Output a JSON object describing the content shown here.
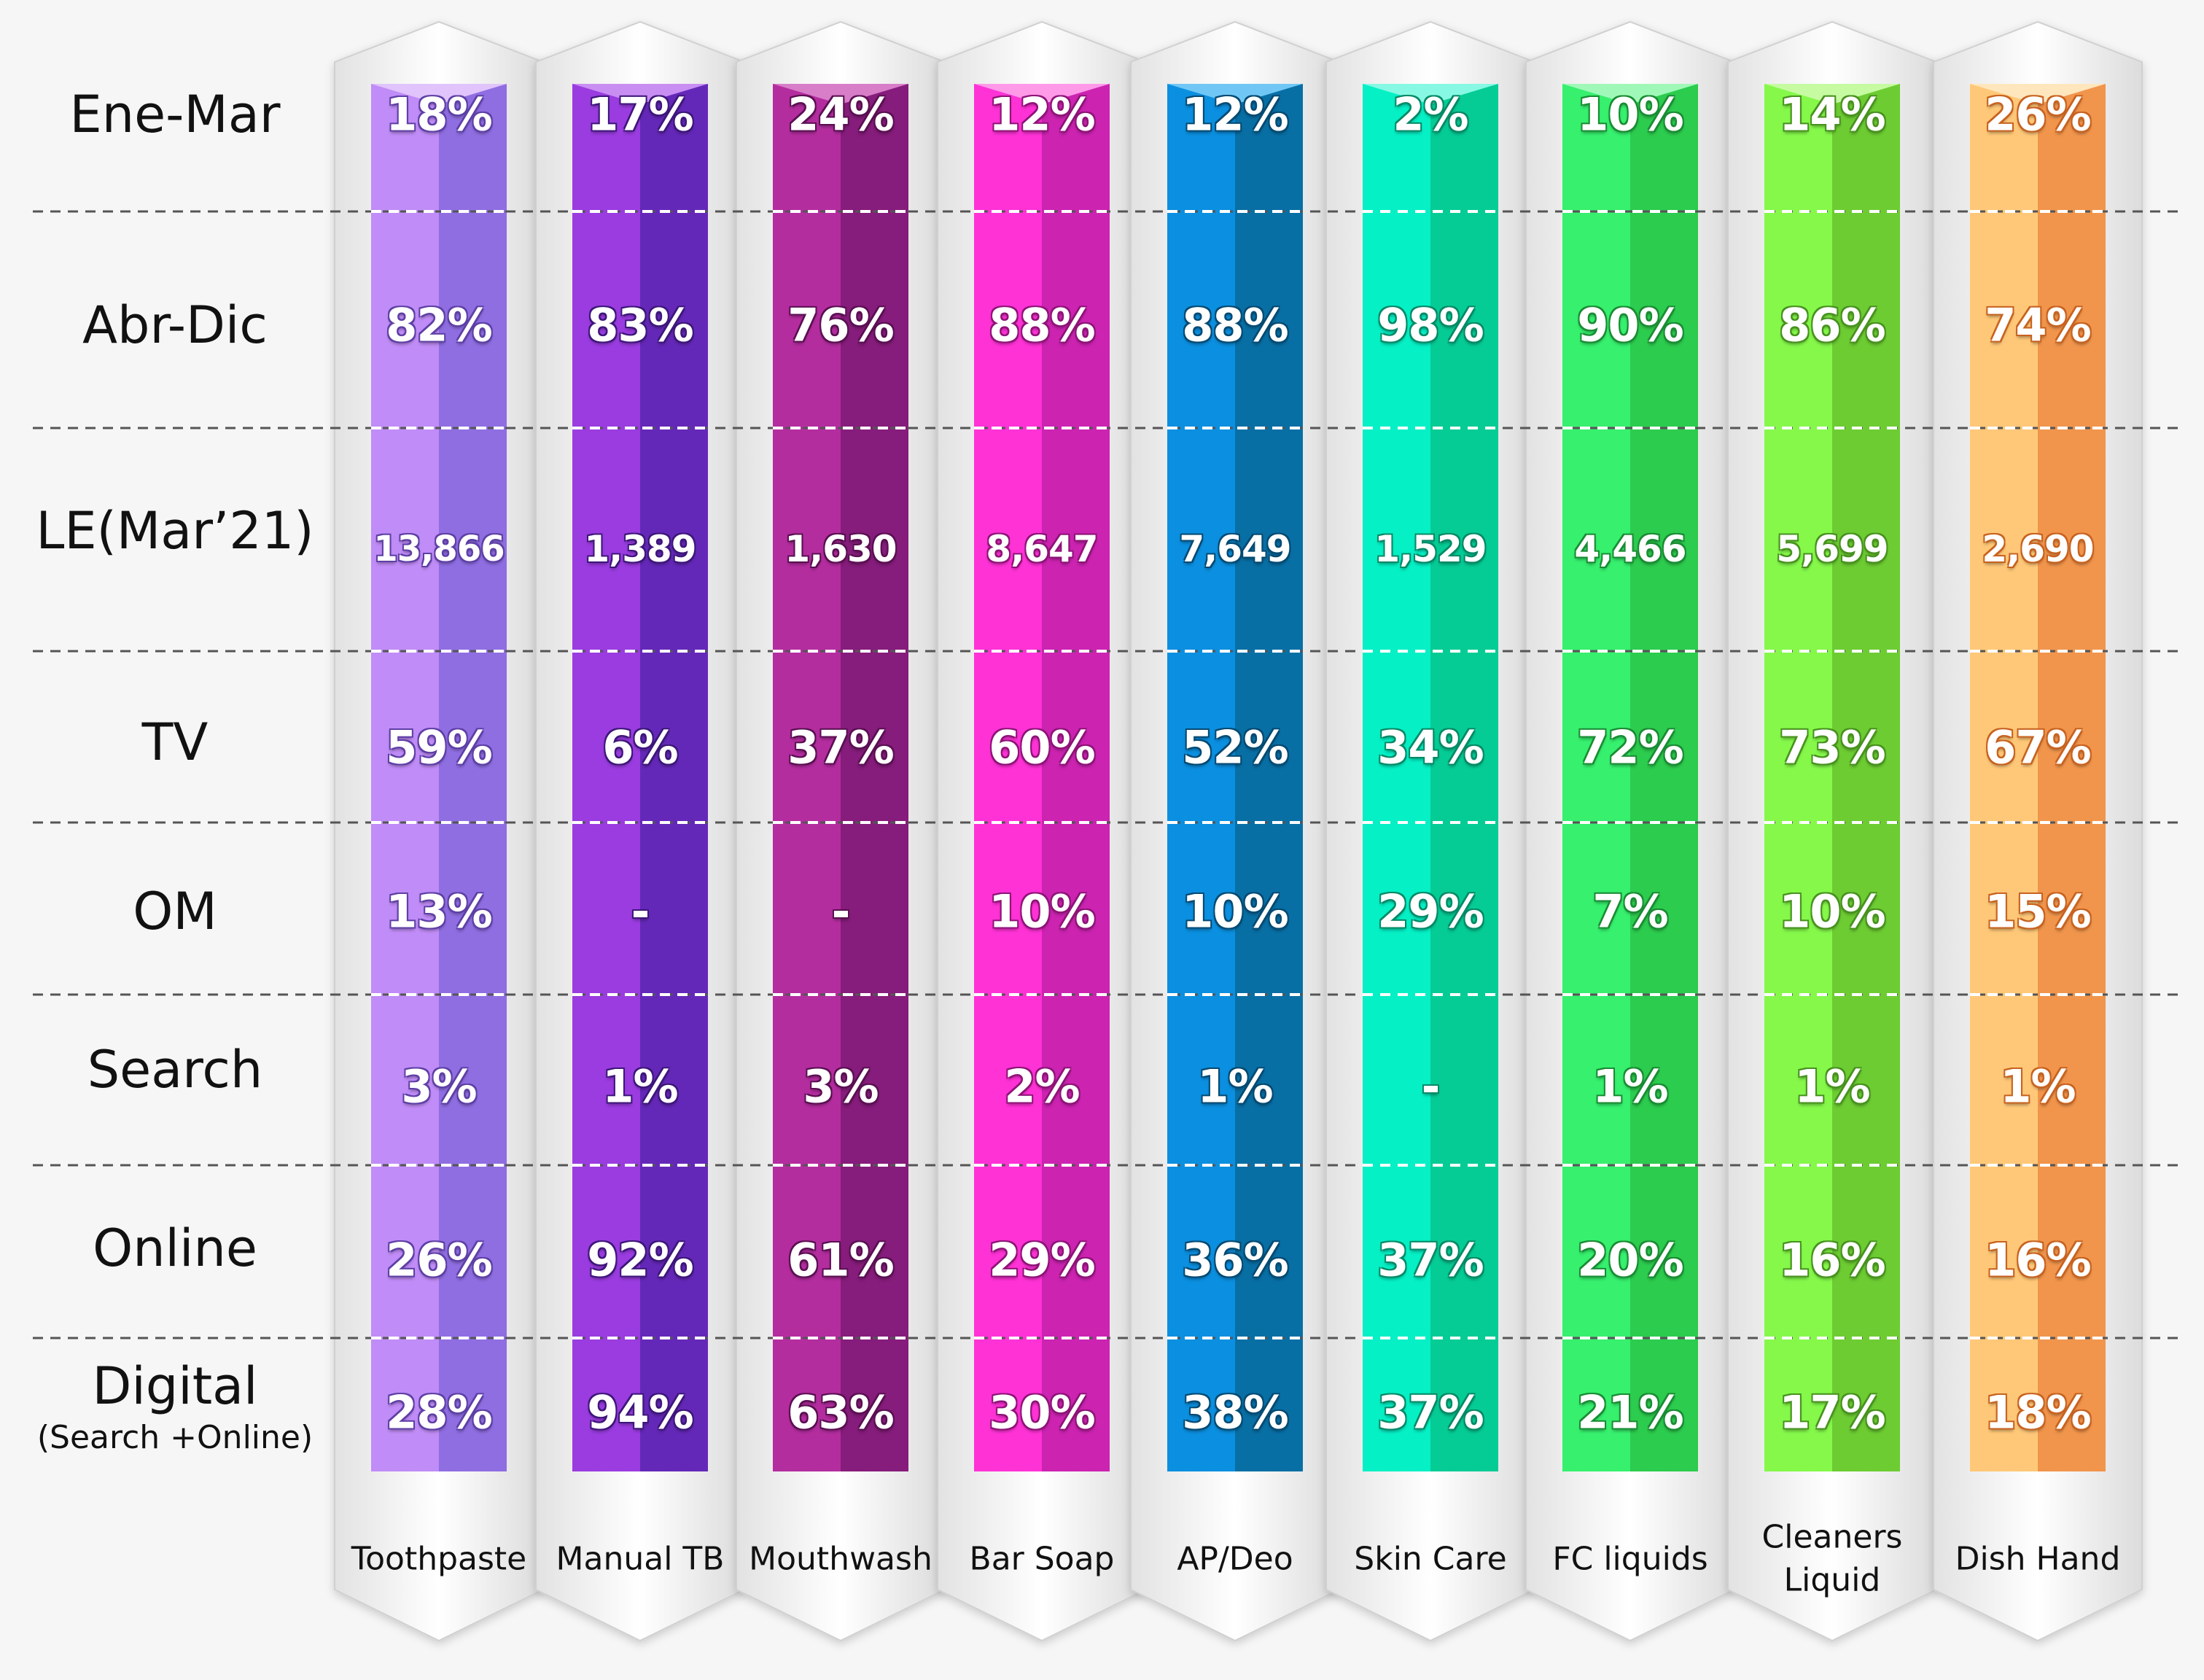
{
  "rows": [
    {
      "label": "Ene-Mar"
    },
    {
      "label": "Abr-Dic"
    },
    {
      "label": "LE(Mar’21)"
    },
    {
      "label": "TV"
    },
    {
      "label": "OM"
    },
    {
      "label": "Search"
    },
    {
      "label": "Online"
    },
    {
      "label": "Digital",
      "sublabel": "(Search +Online)"
    }
  ],
  "columns": [
    {
      "name": "Toothpaste",
      "colors": {
        "light": "#c08cf7",
        "dark": "#8f6ee2",
        "cap": "#e0c4fb"
      },
      "shadow": "#5e3fa6",
      "values": [
        "18%",
        "82%",
        "13,866",
        "59%",
        "13%",
        "3%",
        "26%",
        "28%"
      ]
    },
    {
      "name": "Manual TB",
      "colors": {
        "light": "#9a3ce0",
        "dark": "#6428b9",
        "cap": "#c98ef2"
      },
      "shadow": "#3d167a",
      "values": [
        "17%",
        "83%",
        "1,389",
        "6%",
        "-",
        "1%",
        "92%",
        "94%"
      ]
    },
    {
      "name": "Mouthwash",
      "colors": {
        "light": "#b42d9f",
        "dark": "#861c7b",
        "cap": "#d87ec9"
      },
      "shadow": "#5a0f52",
      "values": [
        "24%",
        "76%",
        "1,630",
        "37%",
        "-",
        "3%",
        "61%",
        "63%"
      ]
    },
    {
      "name": "Bar Soap",
      "colors": {
        "light": "#ff32d6",
        "dark": "#cc23b1",
        "cap": "#ff9ae9"
      },
      "shadow": "#8e1377",
      "values": [
        "12%",
        "88%",
        "8,647",
        "60%",
        "10%",
        "2%",
        "29%",
        "30%"
      ]
    },
    {
      "name": "AP/Deo",
      "colors": {
        "light": "#0b8fe0",
        "dark": "#086fa5",
        "cap": "#70c7f5"
      },
      "shadow": "#044a72",
      "values": [
        "12%",
        "88%",
        "7,649",
        "52%",
        "10%",
        "1%",
        "36%",
        "38%"
      ]
    },
    {
      "name": "Skin Care",
      "colors": {
        "light": "#05f0c5",
        "dark": "#05cc95",
        "cap": "#86f8e3"
      },
      "shadow": "#048a66",
      "values": [
        "2%",
        "98%",
        "1,529",
        "34%",
        "29%",
        "-",
        "37%",
        "37%"
      ]
    },
    {
      "name": "FC liquids",
      "colors": {
        "light": "#36f06e",
        "dark": "#2ccc4e",
        "cap": "#a0f8b8"
      },
      "shadow": "#198c33",
      "values": [
        "10%",
        "90%",
        "4,466",
        "72%",
        "7%",
        "1%",
        "20%",
        "21%"
      ]
    },
    {
      "name": "Cleaners\nLiquid",
      "colors": {
        "light": "#85f84a",
        "dark": "#6dcc32",
        "cap": "#c6fba2"
      },
      "shadow": "#47921e",
      "values": [
        "14%",
        "86%",
        "5,699",
        "73%",
        "10%",
        "1%",
        "16%",
        "17%"
      ]
    },
    {
      "name": "Dish Hand",
      "colors": {
        "light": "#ffc878",
        "dark": "#f1954c",
        "cap": "#ffe6bd"
      },
      "shadow": "#c8621f",
      "values": [
        "26%",
        "74%",
        "2,690",
        "67%",
        "15%",
        "1%",
        "16%",
        "18%"
      ]
    }
  ]
}
